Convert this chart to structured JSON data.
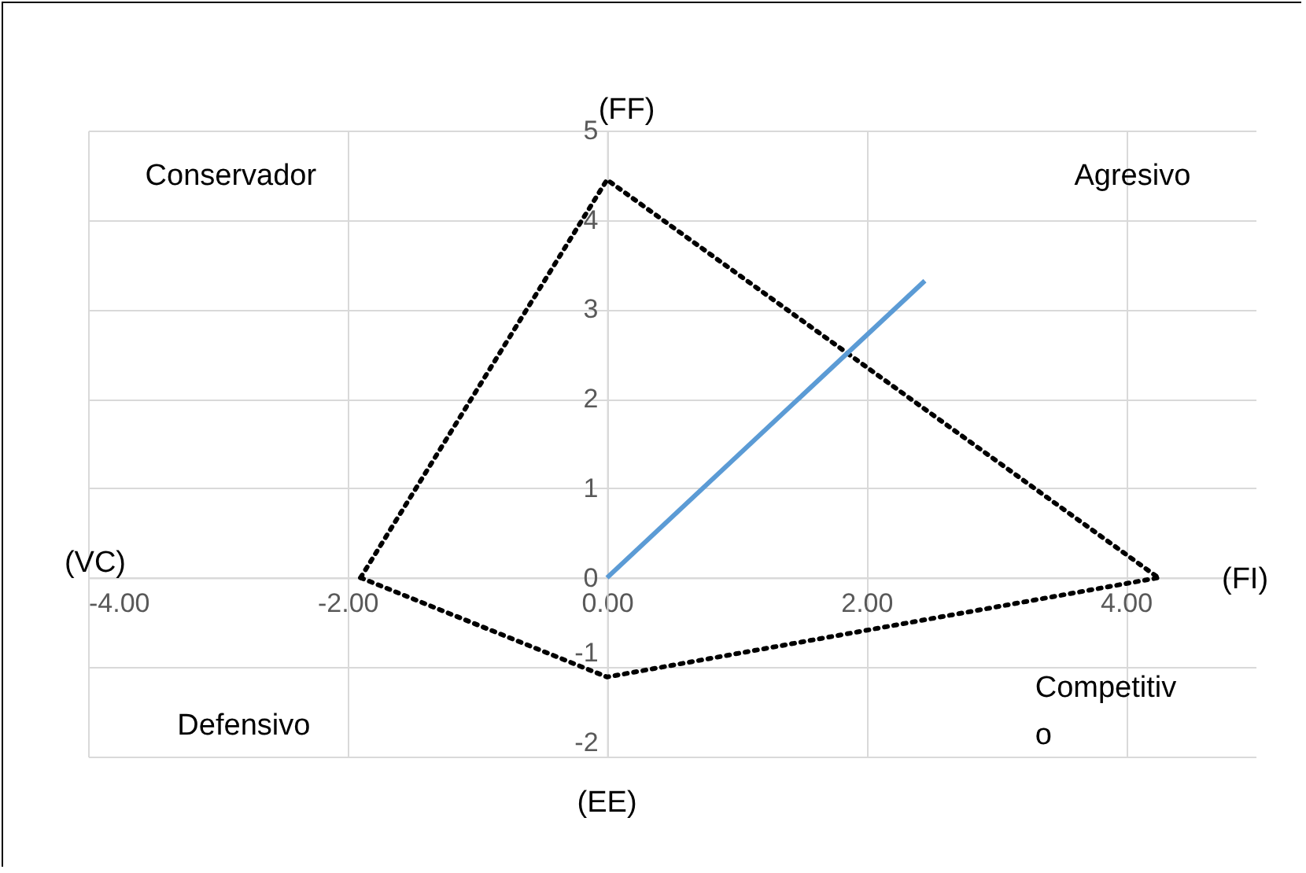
{
  "chart_data": {
    "type": "line",
    "xlabel": "(FI)",
    "ylabel": "(FF)",
    "annotations": [
      "Conservador",
      "Agresivo",
      "Defensivo",
      "Competitivo",
      "(VC)",
      "(EE)"
    ],
    "series": [
      {
        "x": [
          -1.9,
          0,
          4.25
        ],
        "values": [
          0,
          4.45,
          0
        ],
        "color": "#000000",
        "line_style": "dotted"
      },
      {
        "x": [
          -1.9,
          0,
          4.25
        ],
        "values": [
          0,
          -1.11,
          0
        ],
        "color": "#000000",
        "line_style": "dotted"
      },
      {
        "x": [
          0,
          2.45
        ],
        "values": [
          0,
          3.32
        ],
        "color": "#5b9bd5",
        "line_style": "solid"
      }
    ],
    "xlim": [
      -4,
      5
    ],
    "ylim": [
      -2,
      5
    ],
    "xticks": [
      {
        "value": -4,
        "label": "-4.00"
      },
      {
        "value": -2,
        "label": "-2.00"
      },
      {
        "value": 0,
        "label": "0.00"
      },
      {
        "value": 2,
        "label": "2.00"
      },
      {
        "value": 4,
        "label": "4.00"
      }
    ],
    "yticks": [
      -2,
      -1,
      0,
      1,
      2,
      3,
      4,
      5
    ],
    "grid": true,
    "marker": "none"
  }
}
